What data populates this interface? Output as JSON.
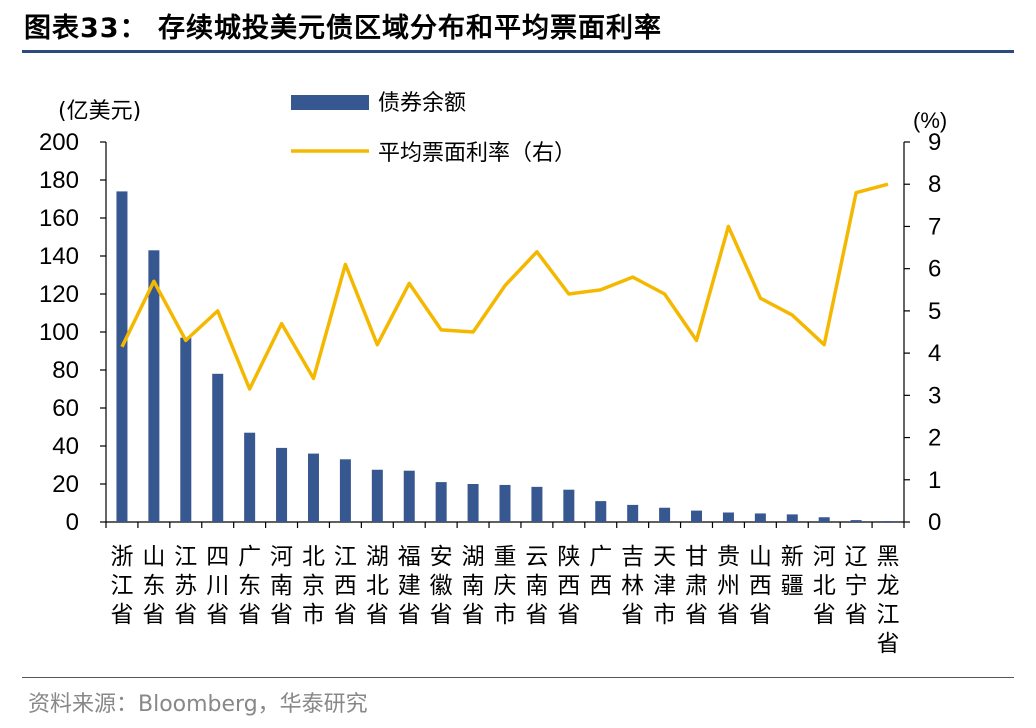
{
  "header": {
    "title": "图表33：   存续城投美元债区域分布和平均票面利率"
  },
  "footer": {
    "source": "资料来源：Bloomberg，华泰研究"
  },
  "chart_data": {
    "type": "bar",
    "categories": [
      "浙江省",
      "山东省",
      "江苏省",
      "四川省",
      "广东省",
      "河南省",
      "北京市",
      "江西省",
      "湖北省",
      "福建省",
      "安徽省",
      "湖南省",
      "重庆市",
      "云南省",
      "陕西省",
      "广西",
      "吉林省",
      "天津市",
      "甘肃省",
      "贵州省",
      "山西省",
      "新疆",
      "河北省",
      "辽宁省",
      "黑龙江省"
    ],
    "series": [
      {
        "name": "债券余额",
        "type": "bar",
        "axis": "left",
        "color": "#36578f",
        "values": [
          174,
          143,
          97,
          78,
          47,
          39,
          36,
          33,
          27.5,
          27,
          21,
          20,
          19.5,
          18.5,
          17,
          11,
          9,
          7.5,
          6,
          5,
          4.5,
          4,
          2.5,
          1,
          0.5
        ]
      },
      {
        "name": "平均票面利率（右）",
        "type": "line",
        "axis": "right",
        "color": "#f5b800",
        "values": [
          4.15,
          5.7,
          4.3,
          5.0,
          3.15,
          4.7,
          3.4,
          6.1,
          4.2,
          5.65,
          4.55,
          4.5,
          5.6,
          6.4,
          5.4,
          5.5,
          5.8,
          5.4,
          4.3,
          7.0,
          5.3,
          4.9,
          4.2,
          7.8,
          8.0
        ]
      }
    ],
    "left_axis": {
      "unit": "(亿美元)",
      "min": 0,
      "max": 200,
      "ticks": [
        0,
        20,
        40,
        60,
        80,
        100,
        120,
        140,
        160,
        180,
        200
      ]
    },
    "right_axis": {
      "unit": "(%)",
      "min": 0,
      "max": 9,
      "ticks": [
        0,
        1,
        2,
        3,
        4,
        5,
        6,
        7,
        8,
        9
      ]
    },
    "legend": {
      "position": "top-center",
      "bar_label": "债券余额",
      "line_label": "平均票面利率（右）"
    },
    "grid": false
  }
}
